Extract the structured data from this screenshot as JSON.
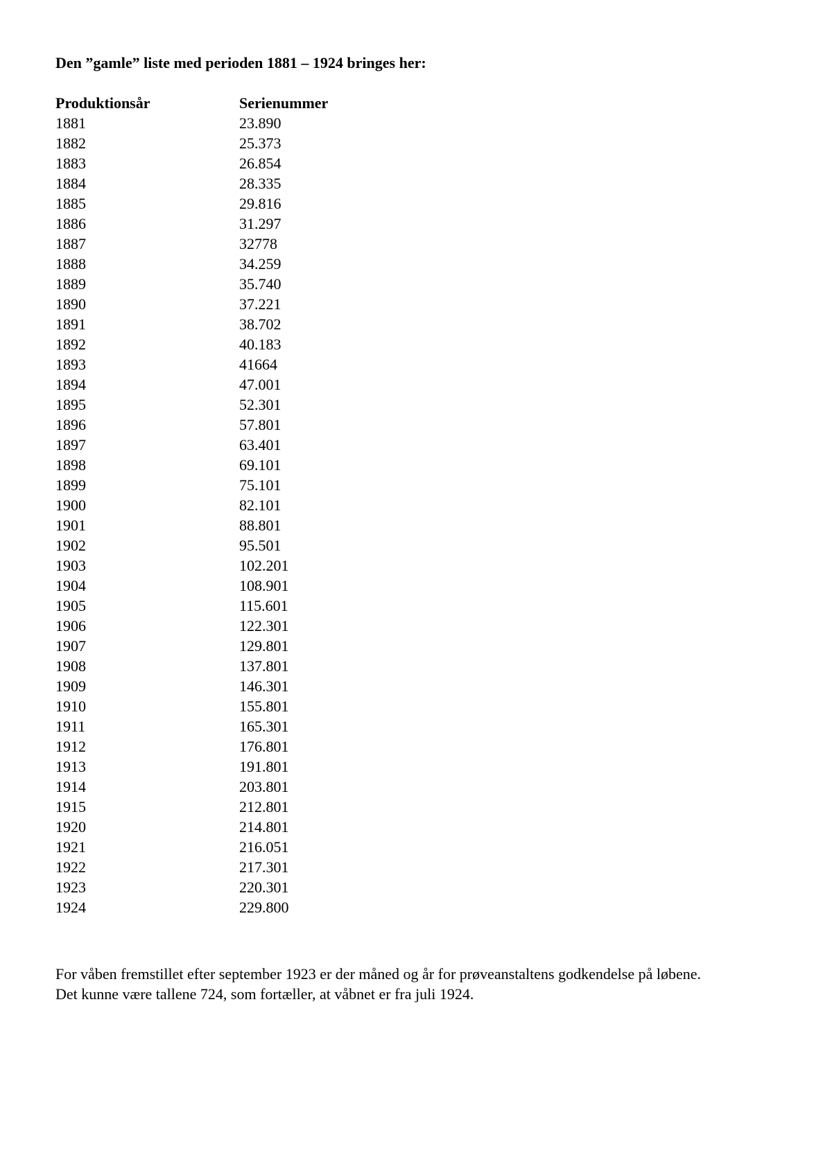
{
  "document": {
    "title": "Den ”gamle” liste med perioden 1881 – 1924 bringes her:",
    "table": {
      "headers": [
        "Produktionsår",
        "Serienummer"
      ],
      "rows": [
        [
          "1881",
          "23.890"
        ],
        [
          "1882",
          "25.373"
        ],
        [
          "1883",
          "26.854"
        ],
        [
          "1884",
          "28.335"
        ],
        [
          "1885",
          "29.816"
        ],
        [
          "1886",
          "31.297"
        ],
        [
          "1887",
          "32778"
        ],
        [
          "1888",
          "34.259"
        ],
        [
          "1889",
          "35.740"
        ],
        [
          "1890",
          "37.221"
        ],
        [
          "1891",
          "38.702"
        ],
        [
          "1892",
          "40.183"
        ],
        [
          "1893",
          "41664"
        ],
        [
          "1894",
          "47.001"
        ],
        [
          "1895",
          "52.301"
        ],
        [
          "1896",
          "57.801"
        ],
        [
          "1897",
          "63.401"
        ],
        [
          "1898",
          "69.101"
        ],
        [
          "1899",
          "75.101"
        ],
        [
          "1900",
          "82.101"
        ],
        [
          "1901",
          "88.801"
        ],
        [
          "1902",
          "95.501"
        ],
        [
          "1903",
          "102.201"
        ],
        [
          "1904",
          "108.901"
        ],
        [
          "1905",
          "115.601"
        ],
        [
          "1906",
          "122.301"
        ],
        [
          "1907",
          "129.801"
        ],
        [
          "1908",
          "137.801"
        ],
        [
          "1909",
          "146.301"
        ],
        [
          "1910",
          "155.801"
        ],
        [
          "1911",
          "165.301"
        ],
        [
          "1912",
          "176.801"
        ],
        [
          "1913",
          "191.801"
        ],
        [
          "1914",
          "203.801"
        ],
        [
          "1915",
          "212.801"
        ],
        [
          "1920",
          "214.801"
        ],
        [
          "1921",
          "216.051"
        ],
        [
          "1922",
          "217.301"
        ],
        [
          "1923",
          "220.301"
        ],
        [
          "1924",
          "229.800"
        ]
      ]
    },
    "footer": {
      "line1": "For våben fremstillet efter september 1923 er der måned og år for prøveanstaltens godkendelse på løbene.",
      "line2": "Det kunne være tallene 724, som fortæller, at våbnet er fra juli 1924."
    }
  }
}
